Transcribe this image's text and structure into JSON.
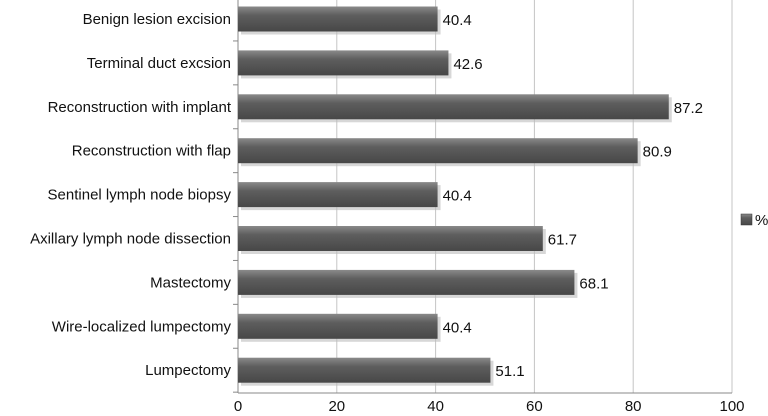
{
  "chart_data": {
    "type": "bar",
    "orientation": "horizontal",
    "categories": [
      "Benign lesion excision",
      "Terminal duct excsion",
      "Reconstruction with implant",
      "Reconstruction with flap",
      "Sentinel lymph node biopsy",
      "Axillary lymph node dissection",
      "Mastectomy",
      "Wire-localized lumpectomy",
      "Lumpectomy"
    ],
    "series": [
      {
        "name": "%",
        "values": [
          40.4,
          42.6,
          87.2,
          80.9,
          40.4,
          61.7,
          68.1,
          40.4,
          51.1
        ]
      }
    ],
    "x_ticks": [
      "0",
      "20",
      "40",
      "60",
      "80",
      "100"
    ],
    "xlim": [
      0,
      100
    ],
    "grid": "vertical",
    "legend_position": "right",
    "colors": {
      "bar": "#555555",
      "bar_highlight": "#8a8a8a",
      "grid": "#c4c4c4",
      "axis": "#888888"
    }
  }
}
